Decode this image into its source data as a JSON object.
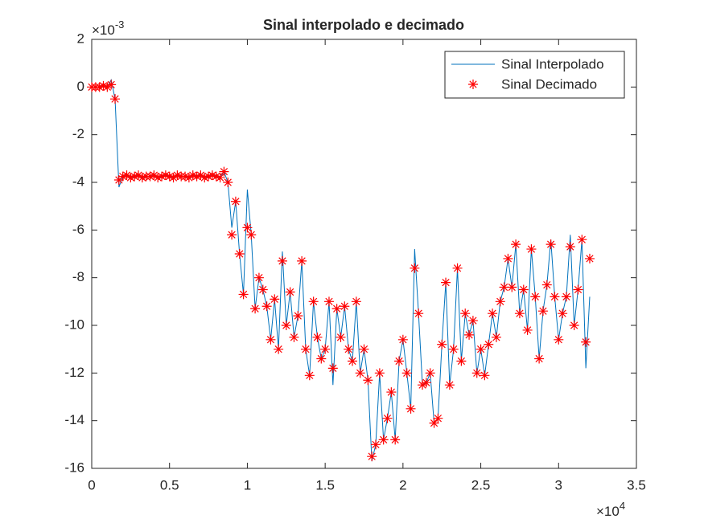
{
  "chart_data": {
    "type": "line-scatter",
    "title": "Sinal interpolado e decimado",
    "y_multiplier": {
      "base": "×10",
      "exponent": "-3"
    },
    "x_multiplier": {
      "base": "×10",
      "exponent": "4"
    },
    "xlim": [
      0,
      3.5
    ],
    "xticks": [
      0,
      0.5,
      1,
      1.5,
      2,
      2.5,
      3,
      3.5
    ],
    "ylim": [
      -16,
      2
    ],
    "yticks": [
      -16,
      -14,
      -12,
      -10,
      -8,
      -6,
      -4,
      -2,
      0,
      2
    ],
    "legend": "top-right",
    "x": [
      0,
      0.025,
      0.05,
      0.075,
      0.1,
      0.125,
      0.15,
      0.175,
      0.2,
      0.225,
      0.25,
      0.275,
      0.3,
      0.325,
      0.35,
      0.375,
      0.4,
      0.425,
      0.45,
      0.475,
      0.5,
      0.525,
      0.55,
      0.575,
      0.6,
      0.625,
      0.65,
      0.675,
      0.7,
      0.725,
      0.75,
      0.775,
      0.8,
      0.825,
      0.85,
      0.875,
      0.9,
      0.925,
      0.95,
      0.975,
      1.0,
      1.025,
      1.05,
      1.075,
      1.1,
      1.125,
      1.15,
      1.175,
      1.2,
      1.225,
      1.25,
      1.275,
      1.3,
      1.325,
      1.35,
      1.375,
      1.4,
      1.425,
      1.45,
      1.475,
      1.5,
      1.525,
      1.55,
      1.575,
      1.6,
      1.625,
      1.65,
      1.675,
      1.7,
      1.725,
      1.75,
      1.775,
      1.8,
      1.825,
      1.85,
      1.875,
      1.9,
      1.925,
      1.95,
      1.975,
      2.0,
      2.025,
      2.05,
      2.075,
      2.1,
      2.125,
      2.15,
      2.175,
      2.2,
      2.225,
      2.25,
      2.275,
      2.3,
      2.325,
      2.35,
      2.375,
      2.4,
      2.425,
      2.45,
      2.475,
      2.5,
      2.525,
      2.55,
      2.575,
      2.6,
      2.625,
      2.65,
      2.675,
      2.7,
      2.725,
      2.75,
      2.775,
      2.8,
      2.825,
      2.85,
      2.875,
      2.9,
      2.925,
      2.95,
      2.975,
      3.0,
      3.025,
      3.05,
      3.075,
      3.1,
      3.125,
      3.15,
      3.175,
      3.2
    ],
    "series": [
      {
        "name": "Sinal Interpolado",
        "style": "line",
        "color": "#0072bd",
        "values": [
          0,
          0,
          0,
          0.05,
          0,
          0.3,
          -0.5,
          -4.2,
          -3.75,
          -3.7,
          -3.8,
          -3.75,
          -3.7,
          -3.8,
          -3.75,
          -3.75,
          -3.7,
          -3.8,
          -3.75,
          -3.7,
          -3.75,
          -3.8,
          -3.7,
          -3.75,
          -3.75,
          -3.8,
          -3.7,
          -3.75,
          -3.7,
          -3.8,
          -3.75,
          -3.7,
          -3.75,
          -3.8,
          -3.55,
          -4.0,
          -5.9,
          -4.8,
          -7.0,
          -8.7,
          -4.3,
          -6.2,
          -9.3,
          -8.0,
          -8.5,
          -9.2,
          -10.6,
          -8.9,
          -11.0,
          -6.9,
          -10.0,
          -8.6,
          -10.5,
          -9.6,
          -7.3,
          -11.0,
          -12.1,
          -9.0,
          -10.5,
          -11.4,
          -11.0,
          -9.0,
          -12.5,
          -9.3,
          -10.5,
          -9.2,
          -11.0,
          -11.5,
          -9.0,
          -12.0,
          -11.0,
          -12.3,
          -15.7,
          -15.0,
          -12.0,
          -14.8,
          -13.9,
          -12.8,
          -14.8,
          -11.5,
          -10.6,
          -12.0,
          -13.5,
          -6.8,
          -9.5,
          -12.5,
          -12.4,
          -12.0,
          -14.1,
          -13.9,
          -10.8,
          -8.2,
          -12.5,
          -11.0,
          -7.6,
          -11.5,
          -9.5,
          -10.4,
          -9.8,
          -12.0,
          -11.0,
          -12.1,
          -10.8,
          -9.5,
          -10.5,
          -9.0,
          -8.4,
          -7.2,
          -8.4,
          -6.6,
          -9.5,
          -8.5,
          -10.2,
          -6.8,
          -8.8,
          -11.4,
          -9.4,
          -8.3,
          -6.4,
          -8.8,
          -10.6,
          -9.5,
          -8.8,
          -6.2,
          -10.0,
          -8.5,
          -6.4,
          -11.8,
          -8.8
        ]
      },
      {
        "name": "Sinal Decimado",
        "style": "marker",
        "color": "#ff0000",
        "values": [
          0,
          0,
          0,
          0.05,
          0,
          0.1,
          -0.5,
          -3.9,
          -3.75,
          -3.7,
          -3.8,
          -3.75,
          -3.7,
          -3.8,
          -3.75,
          -3.75,
          -3.7,
          -3.8,
          -3.75,
          -3.7,
          -3.75,
          -3.8,
          -3.7,
          -3.75,
          -3.75,
          -3.8,
          -3.7,
          -3.75,
          -3.7,
          -3.8,
          -3.75,
          -3.7,
          -3.75,
          -3.8,
          -3.55,
          -4.0,
          -6.2,
          -4.8,
          -7.0,
          -8.7,
          -5.9,
          -6.2,
          -9.3,
          -8.0,
          -8.5,
          -9.2,
          -10.6,
          -8.9,
          -11.0,
          -7.3,
          -10.0,
          -8.6,
          -10.5,
          -9.6,
          -7.3,
          -11.0,
          -12.1,
          -9.0,
          -10.5,
          -11.4,
          -11.0,
          -9.0,
          -11.8,
          -9.3,
          -10.5,
          -9.2,
          -11.0,
          -11.5,
          -9.0,
          -12.0,
          -11.0,
          -12.3,
          -15.5,
          -15.0,
          -12.0,
          -14.8,
          -13.9,
          -12.8,
          -14.8,
          -11.5,
          -10.6,
          -12.0,
          -13.5,
          -7.6,
          -9.5,
          -12.5,
          -12.4,
          -12.0,
          -14.1,
          -13.9,
          -10.8,
          -8.2,
          -12.5,
          -11.0,
          -7.6,
          -11.5,
          -9.5,
          -10.4,
          -9.8,
          -12.0,
          -11.0,
          -12.1,
          -10.8,
          -9.5,
          -10.5,
          -9.0,
          -8.4,
          -7.2,
          -8.4,
          -6.6,
          -9.5,
          -8.5,
          -10.2,
          -6.8,
          -8.8,
          -11.4,
          -9.4,
          -8.3,
          -6.6,
          -8.8,
          -10.6,
          -9.5,
          -8.8,
          -6.7,
          -10.0,
          -8.5,
          -6.4,
          -10.7,
          -7.2
        ]
      }
    ]
  }
}
